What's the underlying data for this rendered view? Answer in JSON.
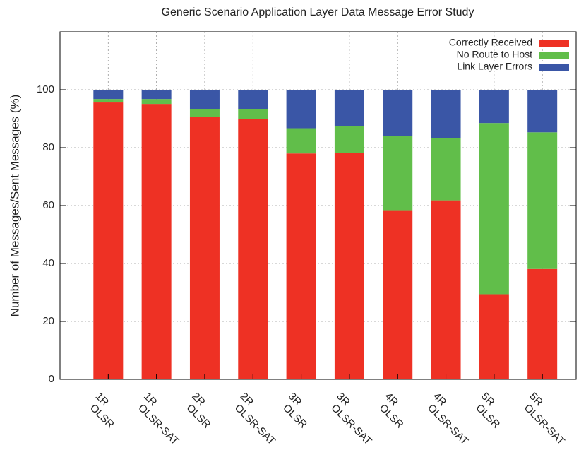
{
  "chart_data": {
    "type": "stacked_bar",
    "title": "Generic Scenario Application Layer Data Message Error Study",
    "y_label": "Number of Messages/Sent Messages (%)",
    "categories": [
      [
        "1R",
        "OLSR"
      ],
      [
        "1R",
        "OLSR-SAT"
      ],
      [
        "2R",
        "OLSR"
      ],
      [
        "2R",
        "OLSR-SAT"
      ],
      [
        "3R",
        "OLSR"
      ],
      [
        "3R",
        "OLSR-SAT"
      ],
      [
        "4R",
        "OLSR"
      ],
      [
        "4R",
        "OLSR-SAT"
      ],
      [
        "5R",
        "OLSR"
      ],
      [
        "5R",
        "OLSR-SAT"
      ]
    ],
    "series": [
      {
        "name": "Correctly Received",
        "color": "#ee3124",
        "values": [
          95.6,
          95.1,
          90.5,
          90.0,
          78.0,
          78.2,
          58.4,
          61.8,
          29.4,
          38.1
        ]
      },
      {
        "name": "No Route to Host",
        "color": "#61be4a",
        "values": [
          1.2,
          1.7,
          2.7,
          3.4,
          8.7,
          9.3,
          25.7,
          21.6,
          59.1,
          47.2
        ]
      },
      {
        "name": "Link Layer Errors",
        "color": "#3a56a6",
        "values": [
          3.2,
          3.2,
          6.8,
          6.6,
          13.3,
          12.5,
          15.9,
          16.6,
          11.5,
          14.7
        ]
      }
    ],
    "ylim": [
      0,
      120
    ],
    "yticks": [
      0,
      20,
      40,
      60,
      80,
      100
    ],
    "grid": true,
    "legend": "top-right"
  }
}
